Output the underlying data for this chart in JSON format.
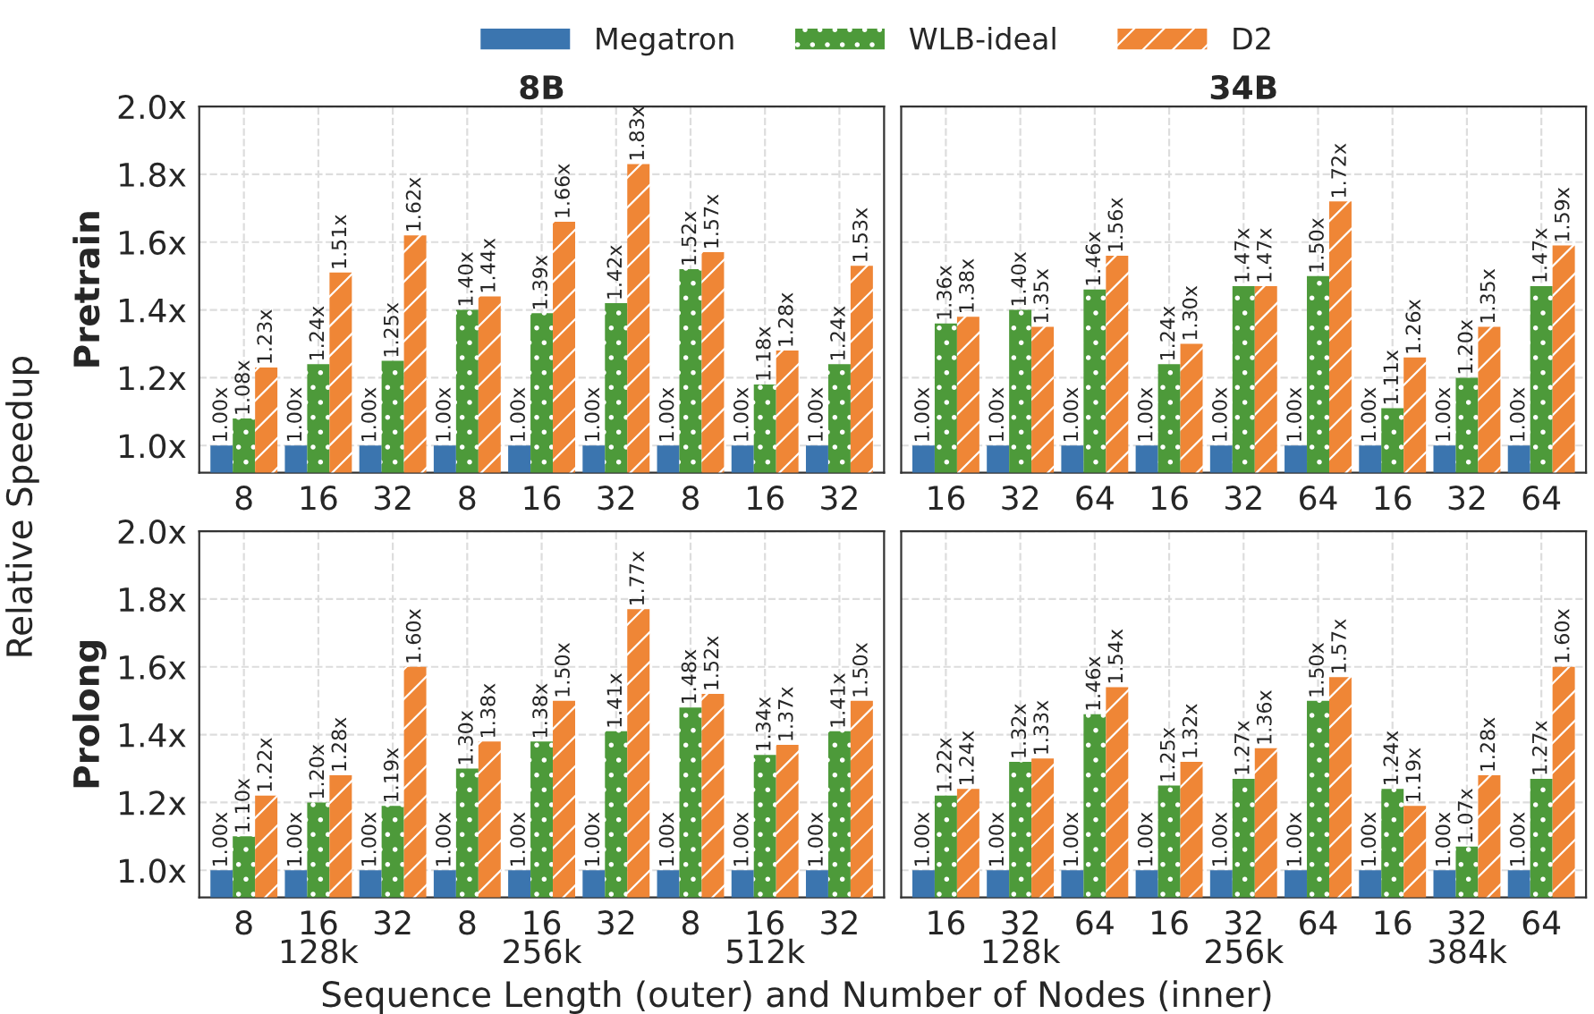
{
  "chart_data": [
    {
      "type": "bar",
      "title": "8B",
      "ylabel": "Pretrain",
      "annotations": [
        "Relative Speedup"
      ],
      "legend": "top",
      "grid": true,
      "categories": [
        "8",
        "16",
        "32",
        "8",
        "16",
        "32",
        "8",
        "16",
        "32"
      ],
      "ylim": [
        0.92,
        2.0
      ],
      "yticks": [
        {
          "value": 1.0,
          "label": "1.0x"
        },
        {
          "value": 1.2,
          "label": "1.2x"
        },
        {
          "value": 1.4,
          "label": "1.4x"
        },
        {
          "value": 1.6,
          "label": "1.6x"
        },
        {
          "value": 1.8,
          "label": "1.8x"
        },
        {
          "value": 2.0,
          "label": "2.0x"
        }
      ],
      "series": [
        {
          "name": "Megatron",
          "color": "#3b75af",
          "values": [
            1.0,
            1.0,
            1.0,
            1.0,
            1.0,
            1.0,
            1.0,
            1.0,
            1.0
          ],
          "value_labels": [
            "1.00x",
            "1.00x",
            "1.00x",
            "1.00x",
            "1.00x",
            "1.00x",
            "1.00x",
            "1.00x",
            "1.00x"
          ]
        },
        {
          "name": "WLB-ideal",
          "color": "#4d9a3a",
          "values": [
            1.08,
            1.24,
            1.25,
            1.4,
            1.39,
            1.42,
            1.52,
            1.18,
            1.24
          ],
          "value_labels": [
            "1.08x",
            "1.24x",
            "1.25x",
            "1.40x",
            "1.39x",
            "1.42x",
            "1.52x",
            "1.18x",
            "1.24x"
          ]
        },
        {
          "name": "D2",
          "color": "#ef8636",
          "values": [
            1.23,
            1.51,
            1.62,
            1.44,
            1.66,
            1.83,
            1.57,
            1.28,
            1.53
          ],
          "value_labels": [
            "1.23x",
            "1.51x",
            "1.62x",
            "1.44x",
            "1.66x",
            "1.83x",
            "1.57x",
            "1.28x",
            "1.53x"
          ]
        }
      ]
    },
    {
      "type": "bar",
      "title": "34B",
      "grid": true,
      "tick_labels": "x",
      "categories": [
        "16",
        "32",
        "64",
        "16",
        "32",
        "64",
        "16",
        "32",
        "64"
      ],
      "ylim": [
        0.92,
        2.0
      ],
      "yticks": [
        {
          "value": 1.0,
          "label": null
        },
        {
          "value": 1.2,
          "label": null
        },
        {
          "value": 1.4,
          "label": null
        },
        {
          "value": 1.6,
          "label": null
        },
        {
          "value": 1.8,
          "label": null
        },
        {
          "value": 2.0,
          "label": null
        }
      ],
      "series": [
        {
          "color": "#3b75af",
          "values": [
            1.0,
            1.0,
            1.0,
            1.0,
            1.0,
            1.0,
            1.0,
            1.0,
            1.0
          ],
          "value_labels": [
            "1.00x",
            "1.00x",
            "1.00x",
            "1.00x",
            "1.00x",
            "1.00x",
            "1.00x",
            "1.00x",
            "1.00x"
          ]
        },
        {
          "color": "#4d9a3a",
          "values": [
            1.36,
            1.4,
            1.46,
            1.24,
            1.47,
            1.5,
            1.11,
            1.2,
            1.47
          ],
          "value_labels": [
            "1.36x",
            "1.40x",
            "1.46x",
            "1.24x",
            "1.47x",
            "1.50x",
            "1.11x",
            "1.20x",
            "1.47x"
          ]
        },
        {
          "color": "#ef8636",
          "values": [
            1.38,
            1.35,
            1.56,
            1.3,
            1.47,
            1.72,
            1.26,
            1.35,
            1.59
          ],
          "value_labels": [
            "1.38x",
            "1.35x",
            "1.56x",
            "1.30x",
            "1.47x",
            "1.72x",
            "1.26x",
            "1.35x",
            "1.59x"
          ]
        }
      ]
    },
    {
      "type": "bar",
      "ylabel": "Prolong",
      "xlabel": "Sequence Length (outer) and Number of Nodes (inner)",
      "grid": true,
      "categories": [
        "8",
        "16\n128k",
        "32",
        "8",
        "16\n256k",
        "32",
        "8",
        "16\n512k",
        "32"
      ],
      "ylim": [
        0.92,
        2.0
      ],
      "yticks": [
        {
          "value": 1.0,
          "label": "1.0x"
        },
        {
          "value": 1.2,
          "label": "1.2x"
        },
        {
          "value": 1.4,
          "label": "1.4x"
        },
        {
          "value": 1.6,
          "label": "1.6x"
        },
        {
          "value": 1.8,
          "label": "1.8x"
        },
        {
          "value": 2.0,
          "label": "2.0x"
        }
      ],
      "series": [
        {
          "color": "#3b75af",
          "values": [
            1.0,
            1.0,
            1.0,
            1.0,
            1.0,
            1.0,
            1.0,
            1.0,
            1.0
          ],
          "value_labels": [
            "1.00x",
            "1.00x",
            "1.00x",
            "1.00x",
            "1.00x",
            "1.00x",
            "1.00x",
            "1.00x",
            "1.00x"
          ]
        },
        {
          "color": "#4d9a3a",
          "values": [
            1.1,
            1.2,
            1.19,
            1.3,
            1.38,
            1.41,
            1.48,
            1.34,
            1.41
          ],
          "value_labels": [
            "1.10x",
            "1.20x",
            "1.19x",
            "1.30x",
            "1.38x",
            "1.41x",
            "1.48x",
            "1.34x",
            "1.41x"
          ]
        },
        {
          "color": "#ef8636",
          "values": [
            1.22,
            1.28,
            1.6,
            1.38,
            1.5,
            1.77,
            1.52,
            1.37,
            1.5
          ],
          "value_labels": [
            "1.22x",
            "1.28x",
            "1.60x",
            "1.38x",
            "1.50x",
            "1.77x",
            "1.52x",
            "1.37x",
            "1.50x"
          ]
        }
      ]
    },
    {
      "type": "bar",
      "grid": true,
      "tick_labels": "x",
      "categories": [
        "16",
        "32\n128k",
        "64",
        "16",
        "32\n256k",
        "64",
        "16",
        "32\n384k",
        "64"
      ],
      "ylim": [
        0.92,
        2.0
      ],
      "yticks": [
        {
          "value": 1.0,
          "label": null
        },
        {
          "value": 1.2,
          "label": null
        },
        {
          "value": 1.4,
          "label": null
        },
        {
          "value": 1.6,
          "label": null
        },
        {
          "value": 1.8,
          "label": null
        },
        {
          "value": 2.0,
          "label": null
        }
      ],
      "series": [
        {
          "color": "#3b75af",
          "values": [
            1.0,
            1.0,
            1.0,
            1.0,
            1.0,
            1.0,
            1.0,
            1.0,
            1.0
          ],
          "value_labels": [
            "1.00x",
            "1.00x",
            "1.00x",
            "1.00x",
            "1.00x",
            "1.00x",
            "1.00x",
            "1.00x",
            "1.00x"
          ]
        },
        {
          "color": "#4d9a3a",
          "values": [
            1.22,
            1.32,
            1.46,
            1.25,
            1.27,
            1.5,
            1.24,
            1.07,
            1.27
          ],
          "value_labels": [
            "1.22x",
            "1.32x",
            "1.46x",
            "1.25x",
            "1.27x",
            "1.50x",
            "1.24x",
            "1.07x",
            "1.27x"
          ]
        },
        {
          "color": "#ef8636",
          "values": [
            1.24,
            1.33,
            1.54,
            1.32,
            1.36,
            1.57,
            1.19,
            1.28,
            1.6
          ],
          "value_labels": [
            "1.24x",
            "1.33x",
            "1.54x",
            "1.32x",
            "1.36x",
            "1.57x",
            "1.19x",
            "1.28x",
            "1.60x"
          ]
        }
      ]
    }
  ]
}
